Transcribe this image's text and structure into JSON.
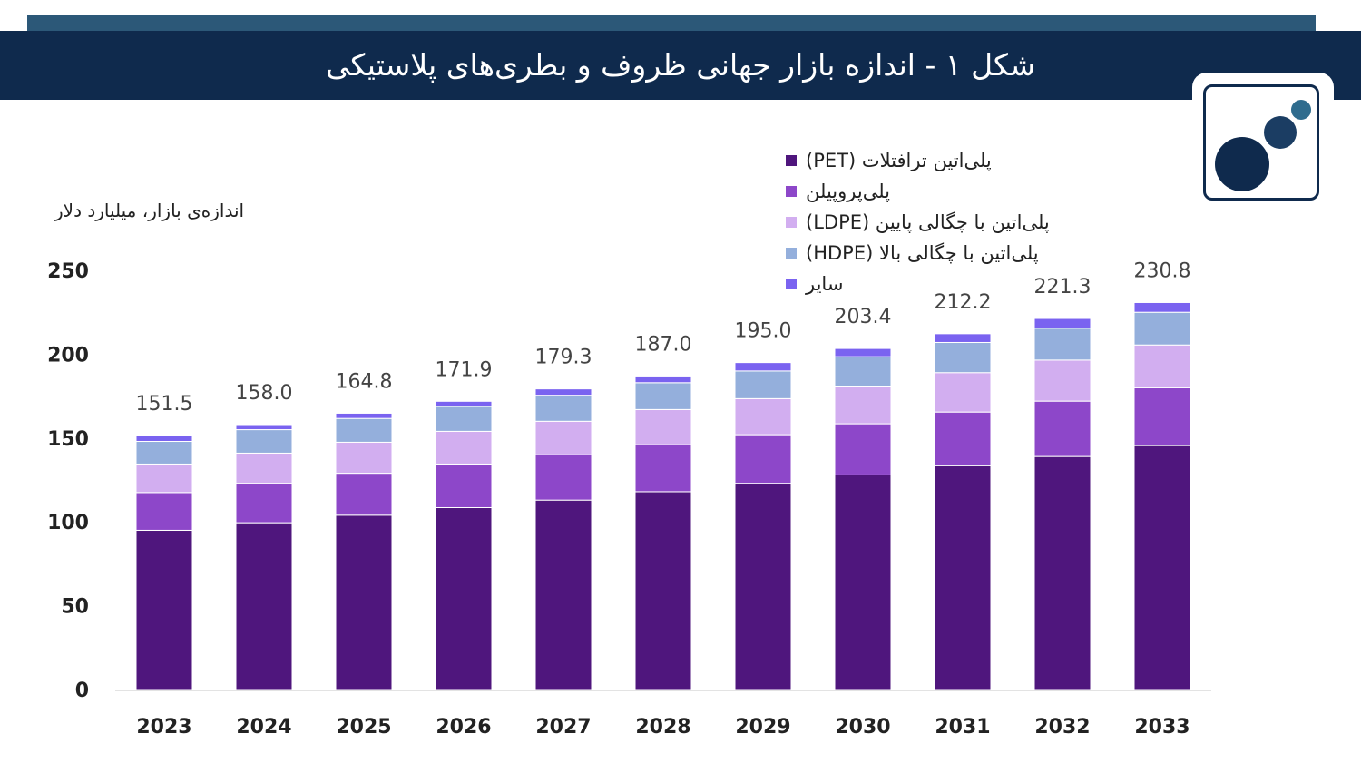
{
  "header": {
    "title": "شکل ۱ - اندازه بازار جهانی ظروف و بطری‌های پلاستیکی"
  },
  "logo": {
    "icon": "circles-logo-icon"
  },
  "colors": {
    "title_bar": "#0f2a4d",
    "top_strip": "#2c5878"
  },
  "chart_data": {
    "type": "bar",
    "stacked": true,
    "ylabel": "اندازه‌ی بازار، میلیارد دلار",
    "xlabel": "",
    "ylim": [
      0,
      250
    ],
    "yticks": [
      "0",
      "50",
      "100",
      "150",
      "200",
      "250"
    ],
    "grid": false,
    "legend_position": "top-right",
    "categories": [
      "2023",
      "2024",
      "2025",
      "2026",
      "2027",
      "2028",
      "2029",
      "2030",
      "2031",
      "2032",
      "2033"
    ],
    "totals": [
      "151.5",
      "158.0",
      "164.8",
      "171.9",
      "179.3",
      "187.0",
      "195.0",
      "203.4",
      "212.2",
      "221.3",
      "230.8"
    ],
    "series": [
      {
        "name": "پلی‌اتین ترافتلات (PET)",
        "color": "#4f167d",
        "values": [
          95,
          99.5,
          104,
          108.5,
          113,
          118,
          123,
          128,
          133.5,
          139,
          145.5
        ]
      },
      {
        "name": "پلی‌پروپیلن",
        "color": "#8d47c9",
        "values": [
          22.5,
          23.5,
          25,
          26,
          27,
          28,
          29,
          30.5,
          32,
          33,
          34.5
        ]
      },
      {
        "name": "پلی‌اتین با چگالی پایین (LDPE)",
        "color": "#d2aef0",
        "values": [
          17,
          18,
          18.5,
          19.5,
          20,
          21,
          21.5,
          22.5,
          23.5,
          24.5,
          25.5
        ]
      },
      {
        "name": "پلی‌اتین با چگالی بالا (HDPE)",
        "color": "#94afdc",
        "values": [
          13.5,
          14,
          14.2,
          14.8,
          15.5,
          16,
          16.5,
          17.5,
          18,
          19,
          19.5
        ]
      },
      {
        "name": "سایر",
        "color": "#7a63f0",
        "values": [
          3.5,
          3,
          3.1,
          3.1,
          3.8,
          4,
          5,
          4.9,
          5.2,
          5.8,
          5.8
        ]
      }
    ]
  }
}
